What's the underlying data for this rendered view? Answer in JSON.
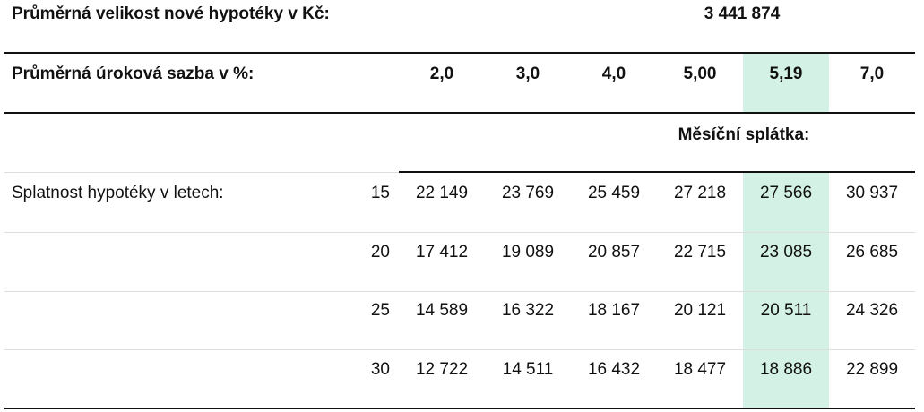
{
  "header": {
    "label": "Průměrná velikost nové hypotéky v Kč:",
    "value": "3 441 874"
  },
  "rates": {
    "label": "Průměrná úroková sazba v %:",
    "values": [
      "2,0",
      "3,0",
      "4,0",
      "5,00",
      "5,19",
      "7,0"
    ]
  },
  "subheader": "Měsíční splátka:",
  "table": {
    "label": "Splatnost hypotéky v letech:",
    "rows": [
      {
        "years": "15",
        "payments": [
          "22 149",
          "23 769",
          "25 459",
          "27 218",
          "27 566",
          "30 937"
        ]
      },
      {
        "years": "20",
        "payments": [
          "17 412",
          "19 089",
          "20 857",
          "22 715",
          "23 085",
          "26 685"
        ]
      },
      {
        "years": "25",
        "payments": [
          "14 589",
          "16 322",
          "18 167",
          "20 121",
          "20 511",
          "24 326"
        ]
      },
      {
        "years": "30",
        "payments": [
          "12 722",
          "14 511",
          "16 432",
          "18 477",
          "18 886",
          "22 899"
        ]
      }
    ]
  }
}
